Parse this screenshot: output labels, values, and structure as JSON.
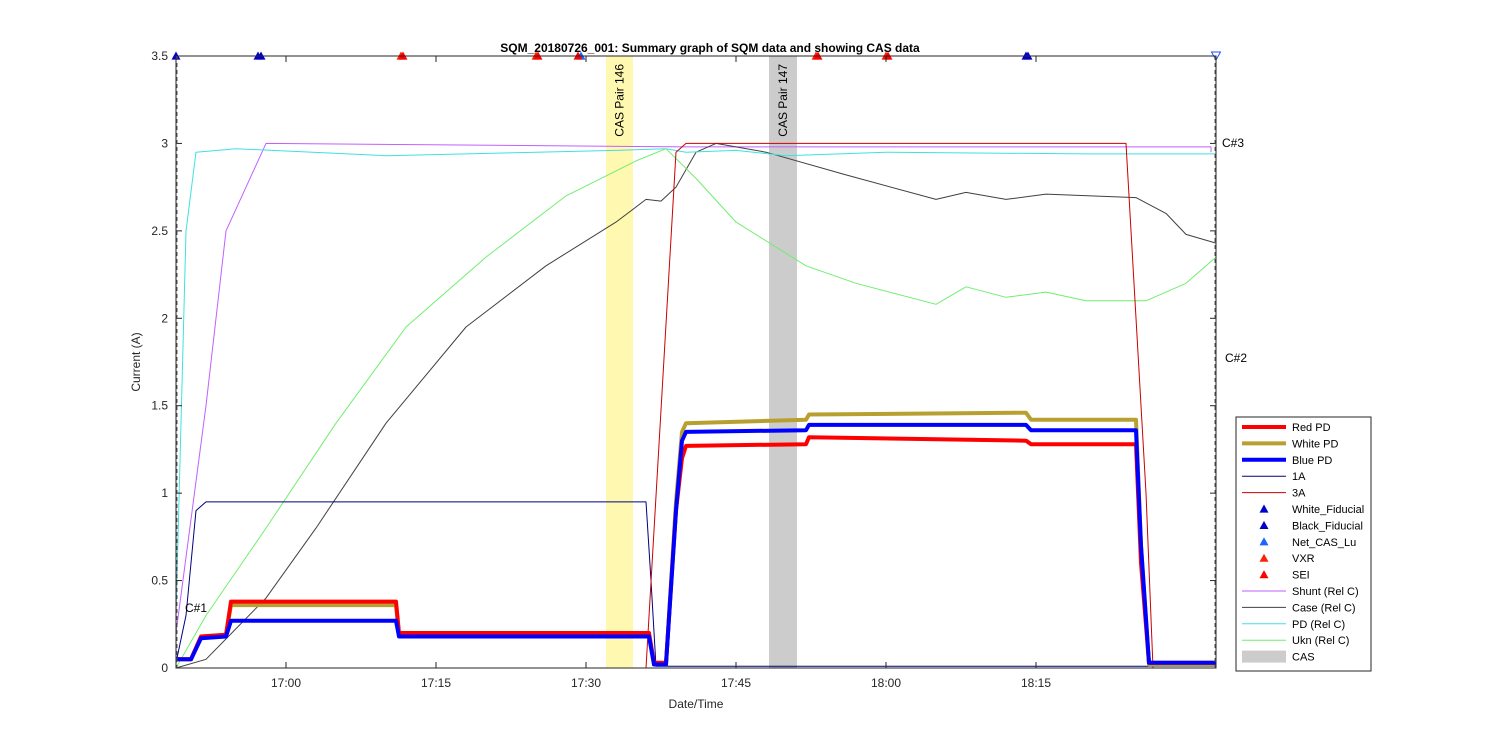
{
  "chart_data": {
    "type": "line",
    "title": "SQM_20180726_001: Summary graph of SQM data and showing CAS data",
    "xlabel": "Date/Time",
    "ylabel": "Current (A)",
    "x_unit": "time of day (hh:mm)",
    "xlim": [
      "16:49",
      "18:33"
    ],
    "ylim": [
      0,
      3.5
    ],
    "x_ticks": [
      {
        "t": "17:00",
        "label": "17:00"
      },
      {
        "t": "17:15",
        "label": "17:15"
      },
      {
        "t": "17:30",
        "label": "17:30"
      },
      {
        "t": "17:45",
        "label": "17:45"
      },
      {
        "t": "18:00",
        "label": "18:00"
      },
      {
        "t": "18:15",
        "label": "18:15"
      }
    ],
    "y_ticks": [
      {
        "v": 0,
        "label": "0"
      },
      {
        "v": 0.5,
        "label": "0.5"
      },
      {
        "v": 1,
        "label": "1"
      },
      {
        "v": 1.5,
        "label": "1.5"
      },
      {
        "v": 2,
        "label": "2"
      },
      {
        "v": 2.5,
        "label": "2.5"
      },
      {
        "v": 3,
        "label": "3"
      },
      {
        "v": 3.5,
        "label": "3.5"
      }
    ],
    "grid": false,
    "legend_position": "right-bottom",
    "cas_bands": [
      {
        "label": "CAS Pair 146",
        "start": "17:32",
        "end": "17:34.7",
        "color": "#fff8b0"
      },
      {
        "label": "CAS Pair 147",
        "start": "17:48.3",
        "end": "17:51.1",
        "color": "#cccccc"
      }
    ],
    "annotations": [
      {
        "text": "C#1",
        "t": "16:49.5",
        "y": 0.32
      },
      {
        "text": "C#3",
        "t": "18:33.2",
        "y": 2.98
      },
      {
        "text": "C#2",
        "t": "18:33.5",
        "y": 1.75
      }
    ],
    "series": [
      {
        "name": "Red PD",
        "color": "#ff0000",
        "width": 4,
        "points": [
          [
            "16:49",
            0.05
          ],
          [
            "16:50.5",
            0.05
          ],
          [
            "16:51.5",
            0.18
          ],
          [
            "16:54",
            0.19
          ],
          [
            "16:54.5",
            0.38
          ],
          [
            "17:11",
            0.38
          ],
          [
            "17:11.3",
            0.2
          ],
          [
            "17:36.3",
            0.2
          ],
          [
            "17:36.8",
            0.03
          ],
          [
            "17:38",
            0.03
          ],
          [
            "17:39",
            0.9
          ],
          [
            "17:39.6",
            1.2
          ],
          [
            "17:40",
            1.27
          ],
          [
            "17:52",
            1.28
          ],
          [
            "17:52.3",
            1.32
          ],
          [
            "18:14",
            1.3
          ],
          [
            "18:14.5",
            1.28
          ],
          [
            "18:25",
            1.28
          ],
          [
            "18:25.5",
            0.6
          ],
          [
            "18:26.3",
            0.03
          ],
          [
            "18:33",
            0.03
          ]
        ]
      },
      {
        "name": "White PD",
        "color": "#b8a030",
        "width": 4,
        "points": [
          [
            "16:49",
            0.05
          ],
          [
            "16:50.5",
            0.05
          ],
          [
            "16:51.5",
            0.18
          ],
          [
            "16:54",
            0.19
          ],
          [
            "16:54.5",
            0.36
          ],
          [
            "17:11",
            0.36
          ],
          [
            "17:11.3",
            0.19
          ],
          [
            "17:36.3",
            0.19
          ],
          [
            "17:36.8",
            0.02
          ],
          [
            "17:38",
            0.02
          ],
          [
            "17:39",
            0.95
          ],
          [
            "17:39.6",
            1.35
          ],
          [
            "17:40",
            1.4
          ],
          [
            "17:52",
            1.42
          ],
          [
            "17:52.3",
            1.45
          ],
          [
            "18:14",
            1.46
          ],
          [
            "18:14.5",
            1.42
          ],
          [
            "18:25",
            1.42
          ],
          [
            "18:25.5",
            0.7
          ],
          [
            "18:26.3",
            0.02
          ],
          [
            "18:33",
            0.02
          ]
        ]
      },
      {
        "name": "Blue PD",
        "color": "#0000ff",
        "width": 4,
        "points": [
          [
            "16:49",
            0.05
          ],
          [
            "16:50.5",
            0.05
          ],
          [
            "16:51.5",
            0.17
          ],
          [
            "16:54",
            0.18
          ],
          [
            "16:54.5",
            0.27
          ],
          [
            "17:11",
            0.27
          ],
          [
            "17:11.3",
            0.18
          ],
          [
            "17:36.3",
            0.18
          ],
          [
            "17:36.8",
            0.02
          ],
          [
            "17:38",
            0.02
          ],
          [
            "17:39",
            0.9
          ],
          [
            "17:39.6",
            1.3
          ],
          [
            "17:40",
            1.35
          ],
          [
            "17:52",
            1.36
          ],
          [
            "17:52.3",
            1.39
          ],
          [
            "18:14",
            1.39
          ],
          [
            "18:14.5",
            1.36
          ],
          [
            "18:25",
            1.36
          ],
          [
            "18:25.5",
            0.7
          ],
          [
            "18:26.3",
            0.03
          ],
          [
            "18:33",
            0.03
          ]
        ]
      },
      {
        "name": "1A",
        "color": "#000080",
        "width": 1,
        "points": [
          [
            "16:49",
            0.03
          ],
          [
            "16:50",
            0.3
          ],
          [
            "16:51",
            0.9
          ],
          [
            "16:52",
            0.95
          ],
          [
            "17:36",
            0.95
          ],
          [
            "17:36.5",
            0.5
          ],
          [
            "17:37",
            0.01
          ],
          [
            "18:33",
            0.01
          ]
        ]
      },
      {
        "name": "3A",
        "color": "#cc0000",
        "width": 1,
        "points": [
          [
            "16:49",
            0
          ],
          [
            "17:36",
            0
          ],
          [
            "17:39",
            2.95
          ],
          [
            "17:40",
            3.0
          ],
          [
            "18:24",
            3.0
          ],
          [
            "18:26",
            1.0
          ],
          [
            "18:26.7",
            0
          ],
          [
            "18:33",
            0
          ]
        ]
      },
      {
        "name": "White_Fiducial",
        "color": "#0000cc",
        "marker": "triangle",
        "points": [
          [
            "16:49",
            3.5
          ],
          [
            "16:57.2",
            3.5
          ],
          [
            "18:14",
            3.5
          ]
        ]
      },
      {
        "name": "Black_Fiducial",
        "color": "#0000cc",
        "marker": "triangle",
        "points": [
          [
            "16:57.5",
            3.5
          ],
          [
            "18:14.2",
            3.5
          ]
        ]
      },
      {
        "name": "Net_CAS_Lu",
        "color": "#1e64ff",
        "marker": "triangle",
        "points": [
          [
            "17:29.5",
            3.5
          ]
        ]
      },
      {
        "name": "VXR",
        "color": "#ff2000",
        "marker": "triangle",
        "points": [
          [
            "17:11.5",
            3.5
          ],
          [
            "17:25",
            3.5
          ],
          [
            "17:53",
            3.5
          ],
          [
            "18:00",
            3.5
          ]
        ]
      },
      {
        "name": "SEI",
        "color": "#ff0000",
        "marker": "triangle",
        "points": [
          [
            "17:11.7",
            3.5
          ],
          [
            "17:25.2",
            3.5
          ],
          [
            "17:29.2",
            3.5
          ],
          [
            "17:53.2",
            3.5
          ],
          [
            "18:00.2",
            3.5
          ]
        ]
      },
      {
        "name": "Shunt (Rel C)",
        "color": "#c060ff",
        "width": 1,
        "points": [
          [
            "16:49",
            0.2
          ],
          [
            "16:52",
            1.5
          ],
          [
            "16:54",
            2.5
          ],
          [
            "16:58",
            3.0
          ],
          [
            "17:40",
            2.98
          ],
          [
            "18:32.5",
            2.98
          ],
          [
            "18:32.5",
            2.95
          ]
        ]
      },
      {
        "name": "Case (Rel C)",
        "color": "#404040",
        "width": 1,
        "points": [
          [
            "16:49",
            0
          ],
          [
            "16:52",
            0.05
          ],
          [
            "16:58",
            0.4
          ],
          [
            "17:03",
            0.8
          ],
          [
            "17:10",
            1.4
          ],
          [
            "17:18",
            1.95
          ],
          [
            "17:26",
            2.3
          ],
          [
            "17:33",
            2.55
          ],
          [
            "17:36",
            2.68
          ],
          [
            "17:37.5",
            2.67
          ],
          [
            "17:39",
            2.75
          ],
          [
            "17:41",
            2.95
          ],
          [
            "17:43",
            3.0
          ],
          [
            "17:48",
            2.95
          ],
          [
            "17:56",
            2.82
          ],
          [
            "18:05",
            2.68
          ],
          [
            "18:08",
            2.72
          ],
          [
            "18:12",
            2.68
          ],
          [
            "18:16",
            2.71
          ],
          [
            "18:25",
            2.69
          ],
          [
            "18:28",
            2.6
          ],
          [
            "18:30",
            2.48
          ],
          [
            "18:33",
            2.43
          ]
        ]
      },
      {
        "name": "PD (Rel C)",
        "color": "#40e0e0",
        "width": 1,
        "points": [
          [
            "16:49",
            0.3
          ],
          [
            "16:50",
            2.5
          ],
          [
            "16:51",
            2.95
          ],
          [
            "16:55",
            2.97
          ],
          [
            "17:10",
            2.93
          ],
          [
            "17:25",
            2.95
          ],
          [
            "17:33",
            2.96
          ],
          [
            "17:38",
            2.97
          ],
          [
            "17:40",
            2.95
          ],
          [
            "17:45",
            2.96
          ],
          [
            "17:50",
            2.93
          ],
          [
            "18:00",
            2.95
          ],
          [
            "18:20",
            2.94
          ],
          [
            "18:33",
            2.94
          ]
        ]
      },
      {
        "name": "Ukn (Rel C)",
        "color": "#70ee70",
        "width": 1,
        "points": [
          [
            "16:49",
            0
          ],
          [
            "16:52",
            0.3
          ],
          [
            "16:58",
            0.8
          ],
          [
            "17:05",
            1.4
          ],
          [
            "17:12",
            1.95
          ],
          [
            "17:20",
            2.35
          ],
          [
            "17:28",
            2.7
          ],
          [
            "17:35",
            2.9
          ],
          [
            "17:38",
            2.97
          ],
          [
            "17:41",
            2.8
          ],
          [
            "17:45",
            2.55
          ],
          [
            "17:52",
            2.3
          ],
          [
            "17:57",
            2.2
          ],
          [
            "18:05",
            2.08
          ],
          [
            "18:08",
            2.18
          ],
          [
            "18:12",
            2.12
          ],
          [
            "18:16",
            2.15
          ],
          [
            "18:20",
            2.1
          ],
          [
            "18:26",
            2.1
          ],
          [
            "18:30",
            2.2
          ],
          [
            "18:33",
            2.35
          ]
        ]
      },
      {
        "name": "CAS",
        "color": "#cccccc",
        "patch": true,
        "points": []
      }
    ]
  }
}
